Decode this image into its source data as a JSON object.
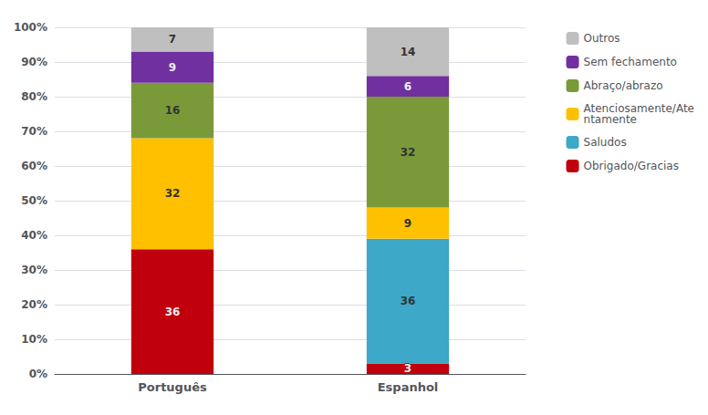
{
  "chart_data": {
    "type": "bar",
    "stacked": true,
    "data_labels": true,
    "grid": true,
    "legend": "right",
    "categories": [
      "Português",
      "Espanhol"
    ],
    "series": [
      {
        "name": "Obrigado/Gracias",
        "color": "#C0000C",
        "values": [
          36,
          3
        ]
      },
      {
        "name": "Saludos",
        "color": "#3DA8C8",
        "values": [
          0,
          36
        ]
      },
      {
        "name": "Atenciosamente/Ate\nntamente",
        "color": "#FFC000",
        "values": [
          32,
          9
        ]
      },
      {
        "name": "Abraço/abrazo",
        "color": "#7A9A3A",
        "values": [
          16,
          32
        ]
      },
      {
        "name": "Sem fechamento",
        "color": "#7030A0",
        "values": [
          9,
          6
        ]
      },
      {
        "name": "Outros",
        "color": "#BFBFBF",
        "values": [
          7,
          14
        ]
      }
    ],
    "ylim": [
      0,
      100
    ],
    "yticks": [
      {
        "value": 0,
        "label": "0%"
      },
      {
        "value": 10,
        "label": "10%"
      },
      {
        "value": 20,
        "label": "20%"
      },
      {
        "value": 30,
        "label": "30%"
      },
      {
        "value": 40,
        "label": "40%"
      },
      {
        "value": 50,
        "label": "50%"
      },
      {
        "value": 60,
        "label": "60%"
      },
      {
        "value": 70,
        "label": "70%"
      },
      {
        "value": 80,
        "label": "80%"
      },
      {
        "value": 90,
        "label": "90%"
      },
      {
        "value": 100,
        "label": "100%"
      }
    ]
  }
}
